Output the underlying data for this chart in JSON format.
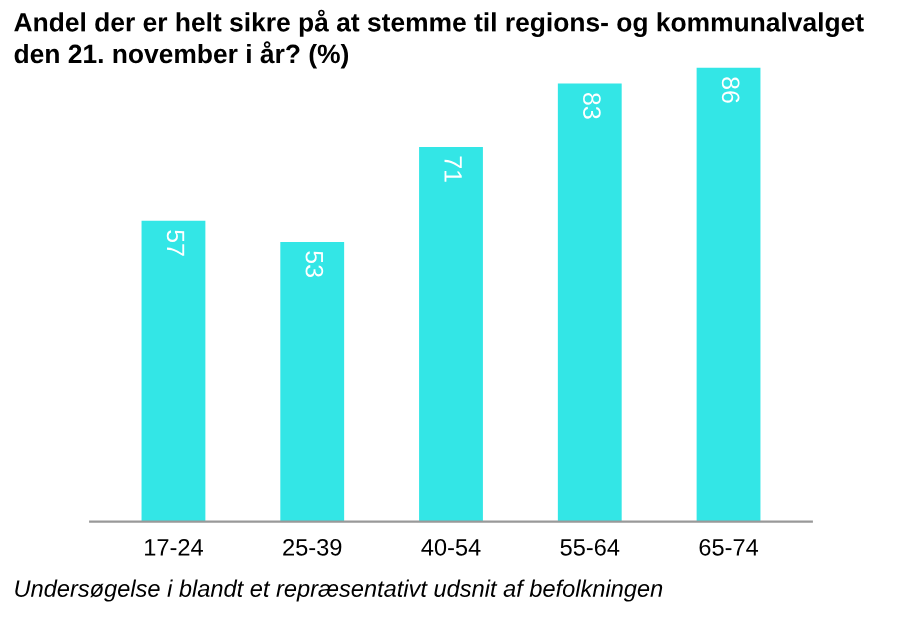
{
  "chart_data": {
    "type": "bar",
    "title": "Andel der er helt sikre på at stemme til regions- og kommunalvalget den 21. november i år? (%)",
    "categories": [
      "17-24",
      "25-39",
      "40-54",
      "55-64",
      "65-74"
    ],
    "values": [
      57,
      53,
      71,
      83,
      86
    ],
    "color": "#33e6e6",
    "data_labels": true,
    "grid": false,
    "annotations": [
      "Undersøgelse i blandt et repræsentativt udsnit af befolkningen"
    ]
  }
}
